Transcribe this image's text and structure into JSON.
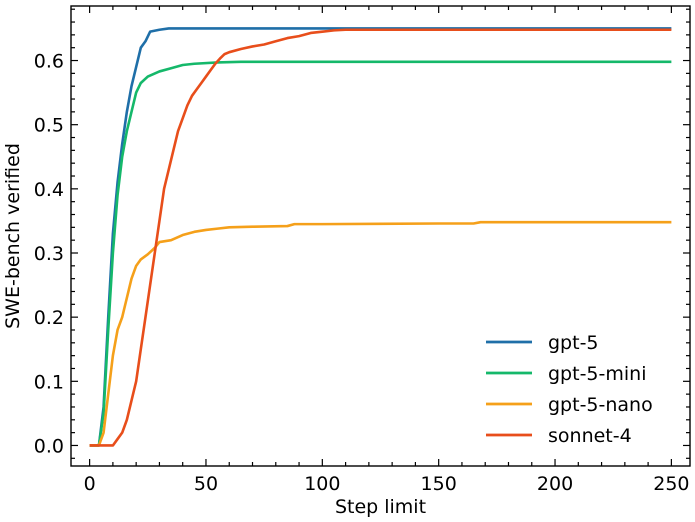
{
  "chart_data": {
    "type": "line",
    "xlabel": "Step limit",
    "ylabel": "SWE-bench verified",
    "xlim": [
      -8,
      258
    ],
    "ylim": [
      -0.032,
      0.685
    ],
    "xticks": [
      0,
      50,
      100,
      150,
      200,
      250
    ],
    "yticks": [
      0.0,
      0.1,
      0.2,
      0.3,
      0.4,
      0.5,
      0.6
    ],
    "x_minor_step": 10,
    "y_minor_step": 0.02,
    "legend_position": "bottom-right",
    "grid": false,
    "series": [
      {
        "name": "gpt-5",
        "color": "#1f6fa8",
        "points": [
          [
            0,
            0
          ],
          [
            4,
            0
          ],
          [
            6,
            0.06
          ],
          [
            8,
            0.2
          ],
          [
            10,
            0.33
          ],
          [
            12,
            0.41
          ],
          [
            14,
            0.47
          ],
          [
            16,
            0.52
          ],
          [
            18,
            0.56
          ],
          [
            20,
            0.59
          ],
          [
            22,
            0.62
          ],
          [
            24,
            0.63
          ],
          [
            26,
            0.645
          ],
          [
            30,
            0.648
          ],
          [
            34,
            0.65
          ],
          [
            40,
            0.65
          ],
          [
            100,
            0.65
          ],
          [
            250,
            0.65
          ]
        ]
      },
      {
        "name": "gpt-5-mini",
        "color": "#15b86a",
        "points": [
          [
            0,
            0
          ],
          [
            4,
            0
          ],
          [
            6,
            0.05
          ],
          [
            8,
            0.18
          ],
          [
            10,
            0.3
          ],
          [
            12,
            0.39
          ],
          [
            14,
            0.45
          ],
          [
            16,
            0.49
          ],
          [
            18,
            0.52
          ],
          [
            20,
            0.55
          ],
          [
            22,
            0.565
          ],
          [
            25,
            0.575
          ],
          [
            30,
            0.583
          ],
          [
            35,
            0.588
          ],
          [
            40,
            0.593
          ],
          [
            45,
            0.595
          ],
          [
            55,
            0.597
          ],
          [
            65,
            0.598
          ],
          [
            250,
            0.598
          ]
        ]
      },
      {
        "name": "gpt-5-nano",
        "color": "#f5a01a",
        "points": [
          [
            0,
            0
          ],
          [
            4,
            0
          ],
          [
            6,
            0.02
          ],
          [
            8,
            0.08
          ],
          [
            10,
            0.14
          ],
          [
            12,
            0.18
          ],
          [
            14,
            0.2
          ],
          [
            16,
            0.23
          ],
          [
            18,
            0.26
          ],
          [
            20,
            0.28
          ],
          [
            22,
            0.29
          ],
          [
            25,
            0.298
          ],
          [
            28,
            0.308
          ],
          [
            30,
            0.317
          ],
          [
            35,
            0.32
          ],
          [
            40,
            0.328
          ],
          [
            45,
            0.333
          ],
          [
            50,
            0.336
          ],
          [
            55,
            0.338
          ],
          [
            60,
            0.34
          ],
          [
            70,
            0.341
          ],
          [
            85,
            0.342
          ],
          [
            88,
            0.345
          ],
          [
            100,
            0.345
          ],
          [
            150,
            0.346
          ],
          [
            165,
            0.346
          ],
          [
            168,
            0.348
          ],
          [
            250,
            0.348
          ]
        ]
      },
      {
        "name": "sonnet-4",
        "color": "#e84e1b",
        "points": [
          [
            0,
            0
          ],
          [
            10,
            0
          ],
          [
            12,
            0.01
          ],
          [
            14,
            0.02
          ],
          [
            16,
            0.04
          ],
          [
            18,
            0.07
          ],
          [
            20,
            0.1
          ],
          [
            22,
            0.15
          ],
          [
            24,
            0.2
          ],
          [
            26,
            0.25
          ],
          [
            28,
            0.3
          ],
          [
            30,
            0.35
          ],
          [
            32,
            0.4
          ],
          [
            34,
            0.43
          ],
          [
            36,
            0.46
          ],
          [
            38,
            0.49
          ],
          [
            40,
            0.51
          ],
          [
            42,
            0.53
          ],
          [
            44,
            0.545
          ],
          [
            46,
            0.555
          ],
          [
            48,
            0.565
          ],
          [
            50,
            0.575
          ],
          [
            52,
            0.585
          ],
          [
            54,
            0.595
          ],
          [
            56,
            0.603
          ],
          [
            58,
            0.61
          ],
          [
            60,
            0.613
          ],
          [
            65,
            0.618
          ],
          [
            70,
            0.622
          ],
          [
            75,
            0.625
          ],
          [
            80,
            0.63
          ],
          [
            85,
            0.635
          ],
          [
            90,
            0.638
          ],
          [
            95,
            0.643
          ],
          [
            100,
            0.645
          ],
          [
            105,
            0.647
          ],
          [
            110,
            0.648
          ],
          [
            250,
            0.648
          ]
        ]
      }
    ]
  }
}
